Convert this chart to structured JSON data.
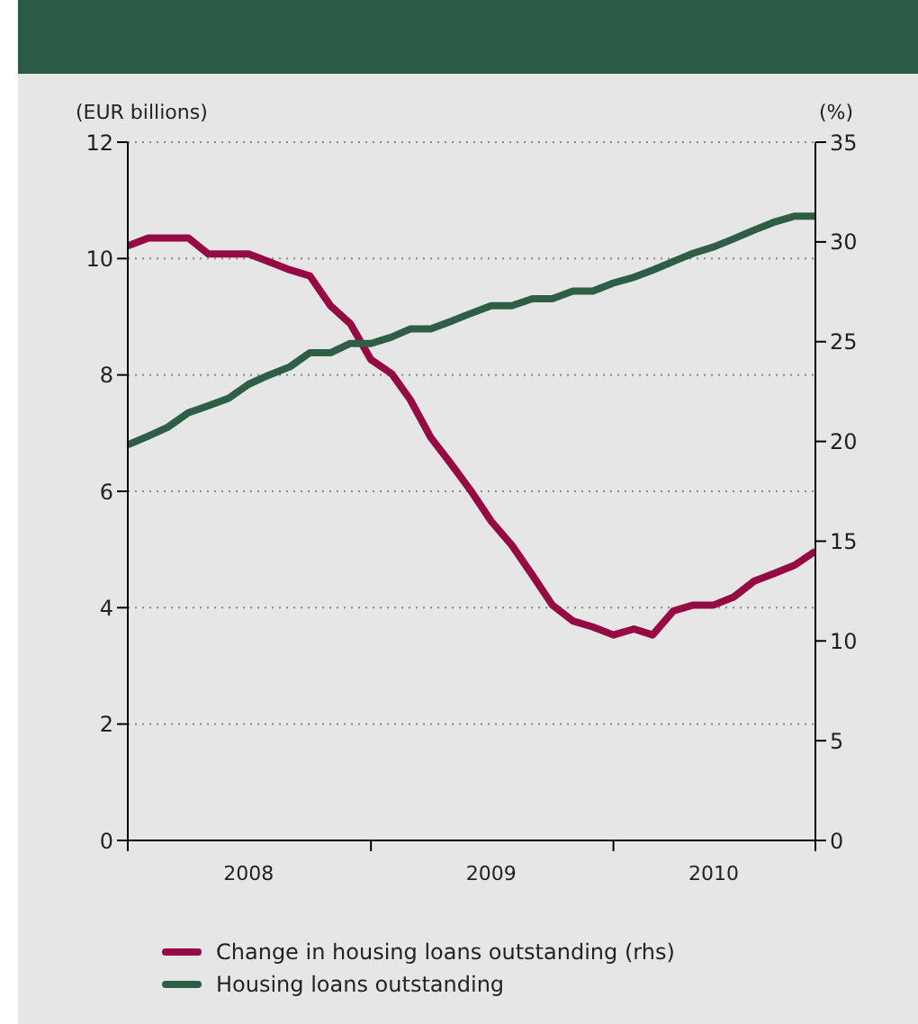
{
  "chart_data": {
    "type": "line",
    "ylabel": "(EUR billions)",
    "y2label": "(%)",
    "x": [
      "2008-01",
      "2008-02",
      "2008-03",
      "2008-04",
      "2008-05",
      "2008-06",
      "2008-07",
      "2008-08",
      "2008-09",
      "2008-10",
      "2008-11",
      "2008-12",
      "2009-01",
      "2009-02",
      "2009-03",
      "2009-04",
      "2009-05",
      "2009-06",
      "2009-07",
      "2009-08",
      "2009-09",
      "2009-10",
      "2009-11",
      "2009-12",
      "2010-01",
      "2010-02",
      "2010-03",
      "2010-04",
      "2010-05",
      "2010-06",
      "2010-07",
      "2010-08",
      "2010-09",
      "2010-10",
      "2010-11"
    ],
    "series": [
      {
        "name": "Change in housing loans outstanding (rhs)",
        "color": "#960a44",
        "axis": "y2",
        "values": [
          29.8,
          30.2,
          30.2,
          30.2,
          29.4,
          29.4,
          29.4,
          29.0,
          28.6,
          28.3,
          26.8,
          25.9,
          24.1,
          23.4,
          22.1,
          20.2,
          18.9,
          17.5,
          16.0,
          14.8,
          13.3,
          11.8,
          11.0,
          10.7,
          10.3,
          10.6,
          10.3,
          11.5,
          11.8,
          11.8,
          12.2,
          13.0,
          13.4,
          13.8,
          14.5
        ]
      },
      {
        "name": "Housing loans outstanding",
        "color": "#2e5e46",
        "values": [
          6.8,
          6.95,
          7.1,
          7.35,
          7.47,
          7.6,
          7.84,
          8.0,
          8.14,
          8.38,
          8.38,
          8.54,
          8.54,
          8.65,
          8.79,
          8.79,
          8.92,
          9.06,
          9.19,
          9.19,
          9.31,
          9.31,
          9.44,
          9.44,
          9.58,
          9.68,
          9.8,
          9.95,
          10.09,
          10.2,
          10.34,
          10.49,
          10.63,
          10.73,
          10.73
        ]
      }
    ],
    "xlim": [
      "2008-01",
      "2010-11"
    ],
    "xticks": [
      {
        "value": "2008-01",
        "label": null
      },
      {
        "value": "2008-07",
        "label": "2008"
      },
      {
        "value": "2009-01",
        "label": null
      },
      {
        "value": "2009-07",
        "label": "2009"
      },
      {
        "value": "2010-01",
        "label": null
      },
      {
        "value": "2010-06",
        "label": "2010"
      },
      {
        "value": "2010-11",
        "label": null
      }
    ],
    "ylim": [
      0,
      12
    ],
    "yticks": [
      0,
      2,
      4,
      6,
      8,
      10,
      12
    ],
    "y2lim": [
      0,
      35
    ],
    "y2ticks": [
      0,
      5,
      10,
      15,
      20,
      25,
      30,
      35
    ],
    "grid": "y",
    "legend": "bottom",
    "marker": "none",
    "line_style": "solid"
  }
}
